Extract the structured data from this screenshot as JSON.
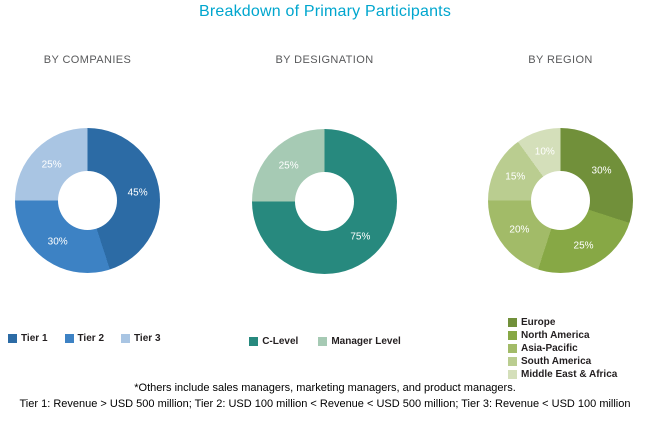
{
  "title": "Breakdown of Primary Participants",
  "accent_color": "#00a6ce",
  "footnotes": [
    "*Others include sales managers, marketing managers, and product managers.",
    "Tier 1: Revenue > USD 500 million; Tier 2: USD 100 million < Revenue < USD 500 million; Tier 3: Revenue < USD 100 million"
  ],
  "chart_data": [
    {
      "type": "pie",
      "subtype": "donut",
      "title": "BY COMPANIES",
      "labels": [
        "Tier 1",
        "Tier 2",
        "Tier 3"
      ],
      "values": [
        45,
        30,
        25
      ],
      "value_labels": [
        "45%",
        "30%",
        "25%"
      ],
      "colors": [
        "#2c6ba5",
        "#3d82c4",
        "#a9c5e3"
      ],
      "start_angle_deg": 0,
      "direction": "clockwise",
      "legend_position": "bottom-row"
    },
    {
      "type": "pie",
      "subtype": "donut",
      "title": "BY DESIGNATION",
      "labels": [
        "C-Level",
        "Manager Level"
      ],
      "values": [
        75,
        25
      ],
      "value_labels": [
        "75%",
        "25%"
      ],
      "colors": [
        "#27897e",
        "#a6cab4"
      ],
      "start_angle_deg": 0,
      "direction": "clockwise",
      "legend_position": "bottom-row"
    },
    {
      "type": "pie",
      "subtype": "donut",
      "title": "BY REGION",
      "labels": [
        "Europe",
        "North America",
        "Asia-Pacific",
        "South America",
        "Middle East & Africa"
      ],
      "values": [
        30,
        25,
        20,
        15,
        10
      ],
      "value_labels": [
        "30%",
        "25%",
        "20%",
        "15%",
        "10%"
      ],
      "colors": [
        "#71903a",
        "#87a845",
        "#a2bb68",
        "#bacd90",
        "#d4dfba"
      ],
      "start_angle_deg": 0,
      "direction": "clockwise",
      "legend_position": "bottom-column"
    }
  ]
}
